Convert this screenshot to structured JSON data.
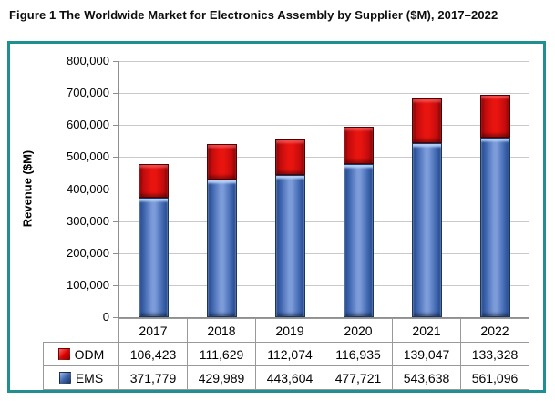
{
  "title": "Figure 1 The Worldwide Market for Electronics Assembly by Supplier ($M), 2017–2022",
  "chart_data": {
    "type": "bar",
    "stacked": true,
    "categories": [
      "2017",
      "2018",
      "2019",
      "2020",
      "2021",
      "2022"
    ],
    "series": [
      {
        "name": "EMS",
        "color": "#4F76C2",
        "values": [
          371779,
          429989,
          443604,
          477721,
          543638,
          561096
        ]
      },
      {
        "name": "ODM",
        "color": "#E8140F",
        "values": [
          106423,
          111629,
          112074,
          116935,
          139047,
          133328
        ]
      }
    ],
    "title": "The Worldwide Market for Electronics Assembly by Supplier ($M), 2017–2022",
    "xlabel": "",
    "ylabel": "Revenue ($M)",
    "ylim": [
      0,
      800000
    ],
    "ytick_step": 100000,
    "grid": true,
    "legend_position": "table-left"
  },
  "table": {
    "columns": [
      "2017",
      "2018",
      "2019",
      "2020",
      "2021",
      "2022"
    ],
    "rows": [
      {
        "id": "odm",
        "label": "ODM",
        "swatch": "red-square-icon",
        "values": [
          "106,423",
          "111,629",
          "112,074",
          "116,935",
          "139,047",
          "133,328"
        ]
      },
      {
        "id": "ems",
        "label": "EMS",
        "swatch": "blue-square-icon",
        "values": [
          "371,779",
          "429,989",
          "443,604",
          "477,721",
          "543,638",
          "561,096"
        ]
      }
    ]
  },
  "colors": {
    "frame_teal": "#1F8F8F",
    "gridline_gray": "#C9C9C9",
    "axis_gray": "#8E8E8E",
    "table_border_gray": "#999999",
    "ems_blue": "#4F76C2",
    "ems_blue_dark": "#27498E",
    "ems_blue_light": "#7C9BD9",
    "ems_outline": "#17375E",
    "odm_red": "#E8140F",
    "odm_red_dark": "#8C0406",
    "odm_red_outline": "#550000"
  }
}
